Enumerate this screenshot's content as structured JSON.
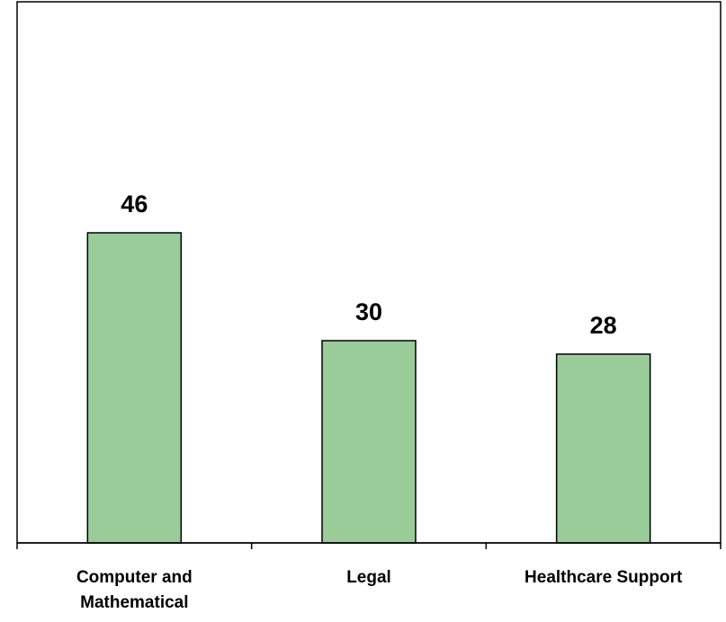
{
  "chart_data": {
    "type": "bar",
    "categories": [
      "Computer and Mathematical",
      "Legal",
      "Healthcare Support"
    ],
    "category_label_lines": [
      [
        "Computer and",
        "Mathematical"
      ],
      [
        "Legal"
      ],
      [
        "Healthcare Support"
      ]
    ],
    "values": [
      46,
      30,
      28
    ],
    "data_labels": [
      "46",
      "30",
      "28"
    ],
    "ylim": [
      0,
      80
    ],
    "grid": false,
    "legend": "none",
    "title": "",
    "xlabel": "",
    "ylabel": ""
  },
  "colors": {
    "bar_fill": "#99cc99",
    "bar_stroke": "#000000",
    "axis": "#000000",
    "frame": "#000000",
    "text": "#000000"
  }
}
